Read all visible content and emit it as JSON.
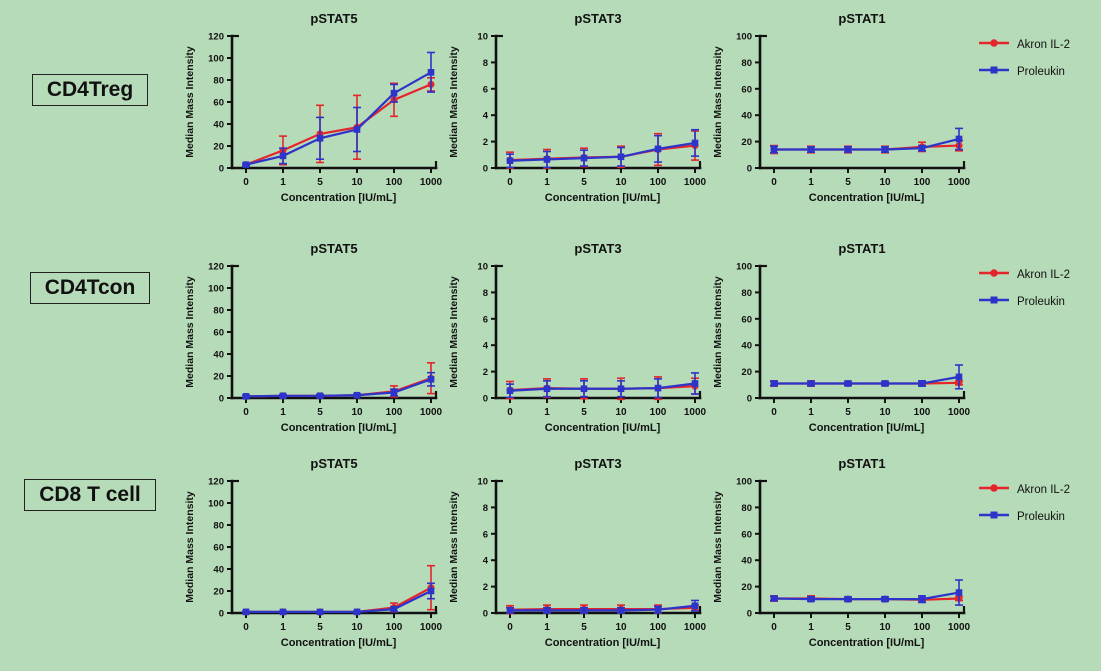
{
  "figure": {
    "background_color": "#b6dbb8",
    "axis_color": "#111111",
    "rows": [
      {
        "label": "CD4Treg"
      },
      {
        "label": "CD4Tcon"
      },
      {
        "label": "CD8 T cell"
      }
    ],
    "legend": {
      "entries": [
        {
          "label": "Akron IL-2",
          "color": "#e4252b",
          "marker": "circle"
        },
        {
          "label": "Proleukin",
          "color": "#2c34c9",
          "marker": "square"
        }
      ]
    }
  },
  "chart_data": [
    {
      "type": "line",
      "row": "CD4Treg",
      "title": "pSTAT5",
      "xlabel": "Concentration [IU/mL]",
      "ylabel": "Median Mass Intensity",
      "categories": [
        "0",
        "1",
        "5",
        "10",
        "100",
        "1000"
      ],
      "ylim": [
        0,
        120
      ],
      "yticks": [
        0,
        20,
        40,
        60,
        80,
        100,
        120
      ],
      "grid": false,
      "legend_position": "right",
      "series": [
        {
          "name": "Akron IL-2",
          "color": "#e4252b",
          "marker": "circle",
          "values": [
            3,
            16,
            31,
            37,
            62,
            76
          ],
          "errors": [
            1,
            13,
            26,
            29,
            15,
            6
          ]
        },
        {
          "name": "Proleukin",
          "color": "#2c34c9",
          "marker": "square",
          "values": [
            3,
            11,
            27,
            35,
            68,
            87
          ],
          "errors": [
            1,
            7,
            19,
            20,
            8,
            18
          ]
        }
      ]
    },
    {
      "type": "line",
      "row": "CD4Treg",
      "title": "pSTAT3",
      "xlabel": "Concentration [IU/mL]",
      "ylabel": "Median Mass Intensity",
      "categories": [
        "0",
        "1",
        "5",
        "10",
        "100",
        "1000"
      ],
      "ylim": [
        0,
        10
      ],
      "yticks": [
        0,
        2,
        4,
        6,
        8,
        10
      ],
      "grid": false,
      "legend_position": "right",
      "series": [
        {
          "name": "Akron IL-2",
          "color": "#e4252b",
          "marker": "circle",
          "values": [
            0.6,
            0.7,
            0.8,
            0.85,
            1.4,
            1.7
          ],
          "errors": [
            0.6,
            0.7,
            0.7,
            0.8,
            1.2,
            1.1
          ]
        },
        {
          "name": "Proleukin",
          "color": "#2c34c9",
          "marker": "square",
          "values": [
            0.55,
            0.65,
            0.75,
            0.85,
            1.45,
            1.9
          ],
          "errors": [
            0.5,
            0.6,
            0.6,
            0.7,
            1.0,
            1.0
          ]
        }
      ]
    },
    {
      "type": "line",
      "row": "CD4Treg",
      "title": "pSTAT1",
      "xlabel": "Concentration [IU/mL]",
      "ylabel": "Median Mass Intensity",
      "categories": [
        "0",
        "1",
        "5",
        "10",
        "100",
        "1000"
      ],
      "ylim": [
        0,
        100
      ],
      "yticks": [
        0,
        20,
        40,
        60,
        80,
        100
      ],
      "grid": false,
      "legend_position": "right",
      "series": [
        {
          "name": "Akron IL-2",
          "color": "#e4252b",
          "marker": "circle",
          "values": [
            14,
            14,
            14,
            14,
            16,
            17
          ],
          "errors": [
            3,
            2.5,
            2.5,
            2.5,
            3.5,
            4
          ]
        },
        {
          "name": "Proleukin",
          "color": "#2c34c9",
          "marker": "square",
          "values": [
            14,
            14,
            14,
            14,
            15,
            22
          ],
          "errors": [
            2.5,
            2,
            2,
            2,
            2,
            8
          ]
        }
      ]
    },
    {
      "type": "line",
      "row": "CD4Tcon",
      "title": "pSTAT5",
      "xlabel": "Concentration [IU/mL]",
      "ylabel": "Median Mass Intensity",
      "categories": [
        "0",
        "1",
        "5",
        "10",
        "100",
        "1000"
      ],
      "ylim": [
        0,
        120
      ],
      "yticks": [
        0,
        20,
        40,
        60,
        80,
        100,
        120
      ],
      "grid": false,
      "legend_position": "right",
      "series": [
        {
          "name": "Akron IL-2",
          "color": "#e4252b",
          "marker": "circle",
          "values": [
            1.5,
            2,
            2,
            2.5,
            6,
            18
          ],
          "errors": [
            1,
            1,
            1,
            1,
            5,
            14
          ]
        },
        {
          "name": "Proleukin",
          "color": "#2c34c9",
          "marker": "square",
          "values": [
            1.5,
            2,
            2,
            2.5,
            5,
            17
          ],
          "errors": [
            1,
            1,
            1,
            1,
            3,
            6
          ]
        }
      ]
    },
    {
      "type": "line",
      "row": "CD4Tcon",
      "title": "pSTAT3",
      "xlabel": "Concentration [IU/mL]",
      "ylabel": "Median Mass Intensity",
      "categories": [
        "0",
        "1",
        "5",
        "10",
        "100",
        "1000"
      ],
      "ylim": [
        0,
        10
      ],
      "yticks": [
        0,
        2,
        4,
        6,
        8,
        10
      ],
      "grid": false,
      "legend_position": "right",
      "series": [
        {
          "name": "Akron IL-2",
          "color": "#e4252b",
          "marker": "circle",
          "values": [
            0.6,
            0.75,
            0.7,
            0.7,
            0.75,
            0.9
          ],
          "errors": [
            0.65,
            0.7,
            0.75,
            0.8,
            0.85,
            0.6
          ]
        },
        {
          "name": "Proleukin",
          "color": "#2c34c9",
          "marker": "square",
          "values": [
            0.55,
            0.7,
            0.7,
            0.7,
            0.75,
            1.1
          ],
          "errors": [
            0.5,
            0.6,
            0.6,
            0.6,
            0.7,
            0.8
          ]
        }
      ]
    },
    {
      "type": "line",
      "row": "CD4Tcon",
      "title": "pSTAT1",
      "xlabel": "Concentration [IU/mL]",
      "ylabel": "Median Mass Intensity",
      "categories": [
        "0",
        "1",
        "5",
        "10",
        "100",
        "1000"
      ],
      "ylim": [
        0,
        100
      ],
      "yticks": [
        0,
        20,
        40,
        60,
        80,
        100
      ],
      "grid": false,
      "legend_position": "right",
      "series": [
        {
          "name": "Akron IL-2",
          "color": "#e4252b",
          "marker": "circle",
          "values": [
            11,
            11,
            11,
            11,
            11,
            11.5
          ],
          "errors": [
            2,
            2,
            1.5,
            1.5,
            1.5,
            1.5
          ]
        },
        {
          "name": "Proleukin",
          "color": "#2c34c9",
          "marker": "square",
          "values": [
            11,
            11,
            11,
            11,
            11,
            16
          ],
          "errors": [
            1.5,
            1.5,
            1.5,
            1.5,
            2,
            9
          ]
        }
      ]
    },
    {
      "type": "line",
      "row": "CD8 T cell",
      "title": "pSTAT5",
      "xlabel": "Concentration [IU/mL]",
      "ylabel": "Median Mass Intensity",
      "categories": [
        "0",
        "1",
        "5",
        "10",
        "100",
        "1000"
      ],
      "ylim": [
        0,
        120
      ],
      "yticks": [
        0,
        20,
        40,
        60,
        80,
        100,
        120
      ],
      "grid": false,
      "legend_position": "right",
      "series": [
        {
          "name": "Akron IL-2",
          "color": "#e4252b",
          "marker": "circle",
          "values": [
            1,
            1,
            1,
            1,
            5,
            23
          ],
          "errors": [
            0.5,
            0.5,
            0.5,
            0.5,
            4,
            20
          ]
        },
        {
          "name": "Proleukin",
          "color": "#2c34c9",
          "marker": "square",
          "values": [
            1,
            1,
            1,
            1,
            3.5,
            20
          ],
          "errors": [
            0.5,
            0.5,
            0.5,
            0.5,
            2,
            7
          ]
        }
      ]
    },
    {
      "type": "line",
      "row": "CD8 T cell",
      "title": "pSTAT3",
      "xlabel": "Concentration [IU/mL]",
      "ylabel": "Median Mass Intensity",
      "categories": [
        "0",
        "1",
        "5",
        "10",
        "100",
        "1000"
      ],
      "ylim": [
        0,
        10
      ],
      "yticks": [
        0,
        2,
        4,
        6,
        8,
        10
      ],
      "grid": false,
      "legend_position": "right",
      "series": [
        {
          "name": "Akron IL-2",
          "color": "#e4252b",
          "marker": "circle",
          "values": [
            0.25,
            0.3,
            0.3,
            0.3,
            0.3,
            0.4
          ],
          "errors": [
            0.3,
            0.3,
            0.3,
            0.3,
            0.3,
            0.2
          ]
        },
        {
          "name": "Proleukin",
          "color": "#2c34c9",
          "marker": "square",
          "values": [
            0.2,
            0.2,
            0.2,
            0.2,
            0.25,
            0.55
          ],
          "errors": [
            0.2,
            0.2,
            0.2,
            0.2,
            0.25,
            0.4
          ]
        }
      ]
    },
    {
      "type": "line",
      "row": "CD8 T cell",
      "title": "pSTAT1",
      "xlabel": "Concentration [IU/mL]",
      "ylabel": "Median Mass Intensity",
      "categories": [
        "0",
        "1",
        "5",
        "10",
        "100",
        "1000"
      ],
      "ylim": [
        0,
        100
      ],
      "yticks": [
        0,
        20,
        40,
        60,
        80,
        100
      ],
      "grid": false,
      "legend_position": "right",
      "series": [
        {
          "name": "Akron IL-2",
          "color": "#e4252b",
          "marker": "circle",
          "values": [
            11,
            11,
            10.5,
            10.5,
            10,
            11
          ],
          "errors": [
            2,
            2,
            1.5,
            1.5,
            1.5,
            1.5
          ]
        },
        {
          "name": "Proleukin",
          "color": "#2c34c9",
          "marker": "square",
          "values": [
            11,
            10.5,
            10.5,
            10.5,
            10.5,
            15.5
          ],
          "errors": [
            1.5,
            1.5,
            1.5,
            1.5,
            2.5,
            9.5
          ]
        }
      ]
    }
  ]
}
